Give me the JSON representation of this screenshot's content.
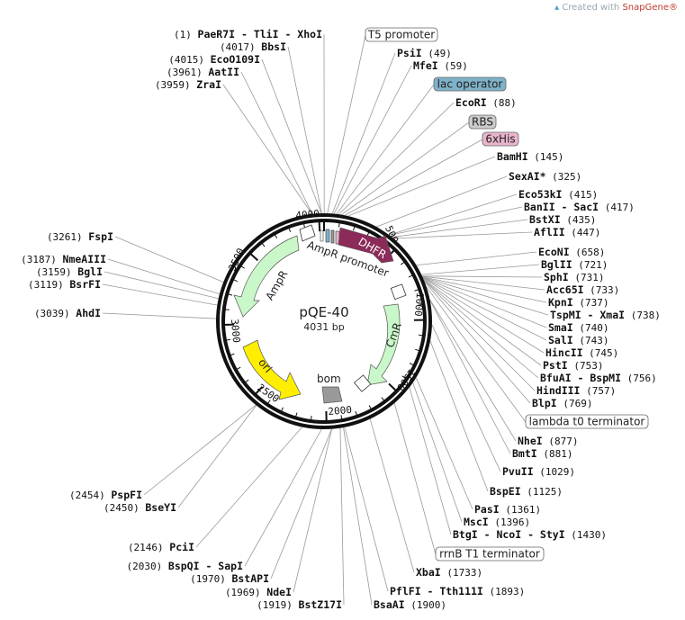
{
  "watermark": {
    "prefix": "Created with ",
    "brand": "SnapGene®"
  },
  "plasmid": {
    "name": "pQE-40",
    "length": "4031 bp"
  },
  "colors": {
    "dhfr": "#8c2a5a",
    "ampr": "#c9f7c9",
    "cmr": "#c9f7c9",
    "ori": "#ffee00",
    "bom": "#999999",
    "lac_operator": "#7fb2c9",
    "his6": "#e8b5cc",
    "rbs": "#cccccc"
  },
  "ticks": [
    "500",
    "1000",
    "1500",
    "2000",
    "2500",
    "3000",
    "3500",
    "4000"
  ],
  "arrows": [
    {
      "name": "DHFR",
      "text_color": "#ffffff"
    },
    {
      "name": "AmpR promoter",
      "text_color": "#222222"
    },
    {
      "name": "CmR",
      "text_color": "#222222"
    },
    {
      "name": "ori",
      "text_color": "#222222"
    },
    {
      "name": "AmpR",
      "text_color": "#222222"
    },
    {
      "name": "bom",
      "text_color": "#222222"
    }
  ],
  "features_right": [
    {
      "label": "T5 promoter"
    },
    {
      "label": "lac operator"
    },
    {
      "label": "RBS"
    },
    {
      "label": "6xHis"
    },
    {
      "label": "lambda t0 terminator"
    },
    {
      "label": "rrnB T1 terminator"
    }
  ],
  "sites_left": [
    {
      "name": "PaeR7I - TliI - XhoI",
      "pos": "(1)"
    },
    {
      "name": "BbsI",
      "pos": "(4017)"
    },
    {
      "name": "EcoO109I",
      "pos": "(4015)"
    },
    {
      "name": "AatII",
      "pos": "(3961)"
    },
    {
      "name": "ZraI",
      "pos": "(3959)"
    },
    {
      "name": "FspI",
      "pos": "(3261)"
    },
    {
      "name": "NmeAIII",
      "pos": "(3187)"
    },
    {
      "name": "BglI",
      "pos": "(3159)"
    },
    {
      "name": "BsrFI",
      "pos": "(3119)"
    },
    {
      "name": "AhdI",
      "pos": "(3039)"
    },
    {
      "name": "PspFI",
      "pos": "(2454)"
    },
    {
      "name": "BseYI",
      "pos": "(2450)"
    },
    {
      "name": "PciI",
      "pos": "(2146)"
    },
    {
      "name": "BspQI - SapI",
      "pos": "(2030)"
    },
    {
      "name": "BstAPI",
      "pos": "(1970)"
    },
    {
      "name": "NdeI",
      "pos": "(1969)"
    },
    {
      "name": "BstZ17I",
      "pos": "(1919)"
    }
  ],
  "sites_right": [
    {
      "name": "PsiI",
      "pos": "(49)"
    },
    {
      "name": "MfeI",
      "pos": "(59)"
    },
    {
      "name": "EcoRI",
      "pos": "(88)"
    },
    {
      "name": "BamHI",
      "pos": "(145)"
    },
    {
      "name": "SexAI*",
      "pos": "(325)"
    },
    {
      "name": "Eco53kI",
      "pos": "(415)"
    },
    {
      "name": "BanII - SacI",
      "pos": "(417)"
    },
    {
      "name": "BstXI",
      "pos": "(435)"
    },
    {
      "name": "AflII",
      "pos": "(447)"
    },
    {
      "name": "EcoNI",
      "pos": "(658)"
    },
    {
      "name": "BglII",
      "pos": "(721)"
    },
    {
      "name": "SphI",
      "pos": "(731)"
    },
    {
      "name": "Acc65I",
      "pos": "(733)"
    },
    {
      "name": "KpnI",
      "pos": "(737)"
    },
    {
      "name": "TspMI - XmaI",
      "pos": "(738)"
    },
    {
      "name": "SmaI",
      "pos": "(740)"
    },
    {
      "name": "SalI",
      "pos": "(743)"
    },
    {
      "name": "HincII",
      "pos": "(745)"
    },
    {
      "name": "PstI",
      "pos": "(753)"
    },
    {
      "name": "BfuAI - BspMI",
      "pos": "(756)"
    },
    {
      "name": "HindIII",
      "pos": "(757)"
    },
    {
      "name": "BlpI",
      "pos": "(769)"
    },
    {
      "name": "NheI",
      "pos": "(877)"
    },
    {
      "name": "BmtI",
      "pos": "(881)"
    },
    {
      "name": "PvuII",
      "pos": "(1029)"
    },
    {
      "name": "BspEI",
      "pos": "(1125)"
    },
    {
      "name": "PasI",
      "pos": "(1361)"
    },
    {
      "name": "MscI",
      "pos": "(1396)"
    },
    {
      "name": "BtgI - NcoI - StyI",
      "pos": "(1430)"
    },
    {
      "name": "XbaI",
      "pos": "(1733)"
    },
    {
      "name": "PflFI - Tth111I",
      "pos": "(1893)"
    },
    {
      "name": "BsaAI",
      "pos": "(1900)"
    }
  ]
}
